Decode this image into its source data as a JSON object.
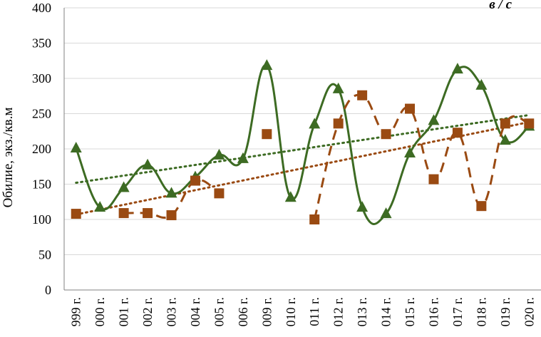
{
  "chart_data": {
    "type": "line",
    "title": "",
    "corner_label": "в / с",
    "xlabel": "",
    "ylabel": "Обилие, экз./кв.м",
    "ylim": [
      0,
      400
    ],
    "y_ticks": [
      0,
      50,
      100,
      150,
      200,
      250,
      300,
      350,
      400
    ],
    "grid": "horizontal",
    "categories": [
      "999 г.",
      "000 г.",
      "001 г.",
      "002 г.",
      "003 г.",
      "004 г.",
      "005 г.",
      "006 г.",
      "009 г.",
      "010 г.",
      "011 г.",
      "012 г.",
      "013 г.",
      "014 г.",
      "015 г.",
      "016 г.",
      "017 г.",
      "018 г.",
      "019 г.",
      "020 г."
    ],
    "series": [
      {
        "style": "solid-smooth-triangle",
        "color": "#3d6b23",
        "values": [
          201,
          117,
          145,
          177,
          137,
          160,
          191,
          186,
          318,
          131,
          235,
          285,
          117,
          108,
          194,
          240,
          313,
          290,
          212,
          232
        ]
      },
      {
        "style": "dashed-smooth-square",
        "color": "#9a4a12",
        "values": [
          108,
          null,
          109,
          109,
          106,
          155,
          137,
          null,
          221,
          null,
          100,
          236,
          276,
          221,
          257,
          157,
          223,
          119,
          236,
          236
        ]
      }
    ],
    "trendlines": [
      {
        "color": "#3d6b23",
        "style": "dotted",
        "start": 152,
        "end": 248
      },
      {
        "color": "#9a4a12",
        "style": "dotted",
        "start": 107,
        "end": 238
      }
    ]
  }
}
